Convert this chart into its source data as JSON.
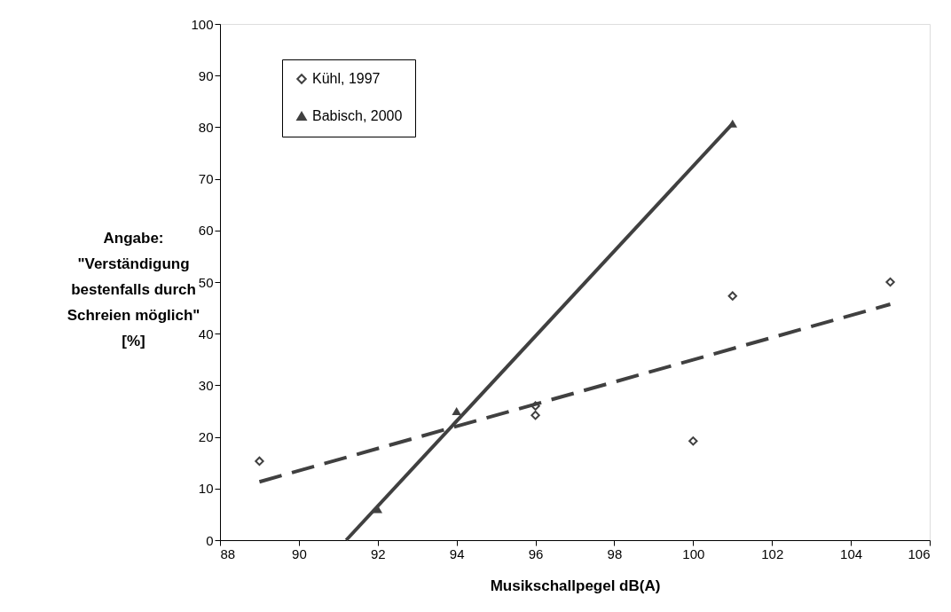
{
  "chart_data": {
    "type": "scatter",
    "xlabel": "Musikschallpegel dB(A)",
    "ylabel": "Angabe: \"Verständigung bestenfalls durch Schreien möglich\" [%]",
    "xlim": [
      88,
      106
    ],
    "xticks": [
      88,
      90,
      92,
      94,
      96,
      98,
      100,
      102,
      104,
      106
    ],
    "ylim": [
      0,
      100
    ],
    "yticks": [
      0,
      10,
      20,
      30,
      40,
      50,
      60,
      70,
      80,
      90,
      100
    ],
    "grid": false,
    "legend": "top left",
    "series": [
      {
        "name": "Kühl, 1997",
        "marker": "diamond",
        "color": "#404040",
        "x": [
          89,
          96,
          96,
          100,
          101,
          105
        ],
        "values": [
          15.3,
          26,
          24.2,
          19.2,
          47.3,
          50
        ]
      },
      {
        "name": "Babisch, 2000",
        "marker": "triangle",
        "color": "#404040",
        "x": [
          92,
          94,
          101
        ],
        "values": [
          6,
          25,
          80.7
        ]
      },
      {
        "type": "line",
        "line_style": "dashed",
        "color": "#404040",
        "x": [
          89,
          105
        ],
        "values": [
          11.3,
          45.7
        ]
      },
      {
        "type": "line",
        "line_style": "solid",
        "color": "#404040",
        "x": [
          91.2,
          101
        ],
        "values": [
          0,
          80.7
        ]
      }
    ]
  }
}
